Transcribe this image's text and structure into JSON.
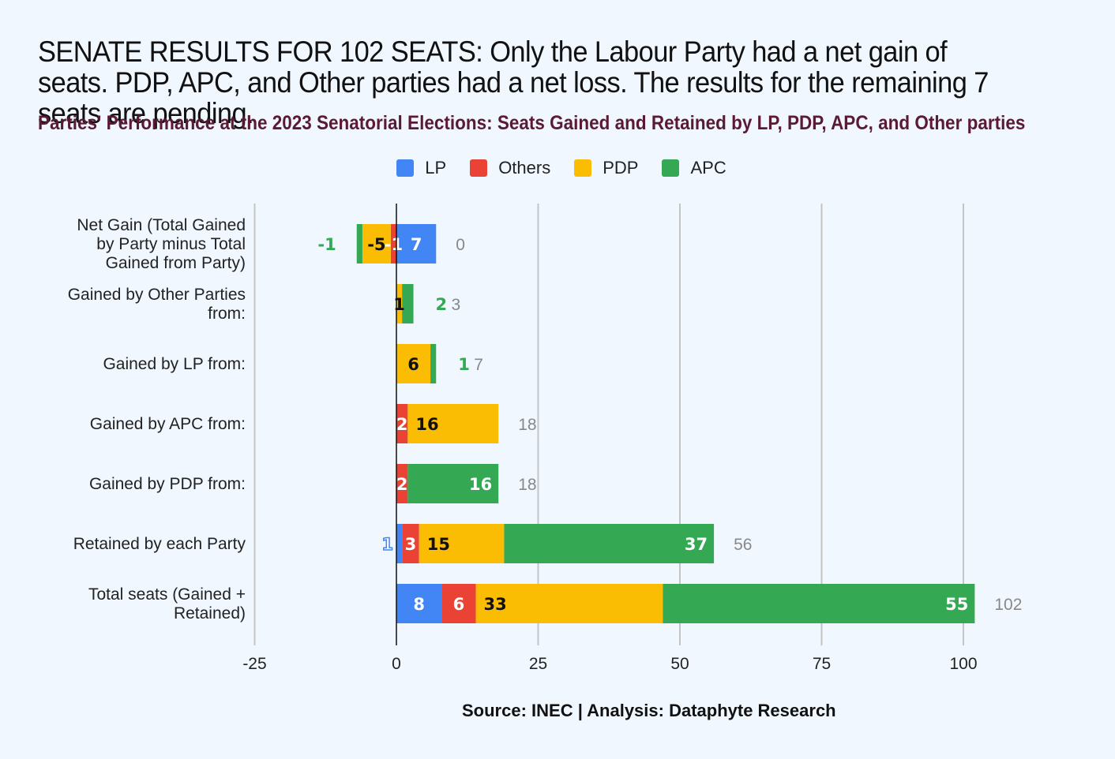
{
  "title": "SENATE RESULTS FOR 102 SEATS: Only the Labour Party had a net gain of seats. PDP, APC, and Other parties had a net loss. The results for the remaining 7 seats are pending.",
  "subtitle": "Parties' Performance at the 2023 Senatorial Elections: Seats Gained and Retained by LP, PDP, APC, and Other parties",
  "source": "Source: INEC | Analysis: Dataphyte Research",
  "colors": {
    "background": "#f0f7ff",
    "LP": "#4285f4",
    "Others": "#ea4335",
    "PDP": "#fbbc04",
    "APC": "#34a853",
    "total_label": "#888888",
    "grid": "#c4c4c4"
  },
  "chart_data": {
    "type": "bar",
    "orientation": "horizontal",
    "stacked": true,
    "legend_position": "top",
    "grid": true,
    "xlim": [
      -25,
      100
    ],
    "x_ticks": [
      "-25",
      "0",
      "25",
      "50",
      "75",
      "100"
    ],
    "categories": [
      [
        "Net Gain (Total Gained",
        "by Party minus Total",
        "Gained from Party)"
      ],
      [
        "Gained by Other Parties",
        "from:"
      ],
      [
        "Gained by LP from:"
      ],
      [
        "Gained by APC from:"
      ],
      [
        "Gained by PDP from:"
      ],
      [
        "Retained by each Party"
      ],
      [
        "Total seats (Gained +",
        "Retained)"
      ]
    ],
    "series": [
      {
        "name": "LP",
        "values": [
          7,
          0,
          0,
          0,
          0,
          1,
          8
        ],
        "labels": [
          "7",
          "",
          "",
          "",
          "",
          "1",
          "8"
        ]
      },
      {
        "name": "Others",
        "values": [
          -1,
          0,
          0,
          2,
          2,
          3,
          6
        ],
        "labels": [
          "-1",
          "",
          "",
          "2",
          "2",
          "3",
          "6"
        ]
      },
      {
        "name": "PDP",
        "values": [
          -5,
          1,
          6,
          16,
          0,
          15,
          33
        ],
        "labels": [
          "-5",
          "1",
          "6",
          "16",
          "",
          "15",
          "33"
        ]
      },
      {
        "name": "APC",
        "values": [
          -1,
          2,
          1,
          0,
          16,
          37,
          55
        ],
        "labels": [
          "-1",
          "2",
          "1",
          "",
          "16",
          "37",
          "55"
        ]
      }
    ],
    "totals": [
      "0",
      "3",
      "7",
      "18",
      "18",
      "56",
      "102"
    ]
  }
}
